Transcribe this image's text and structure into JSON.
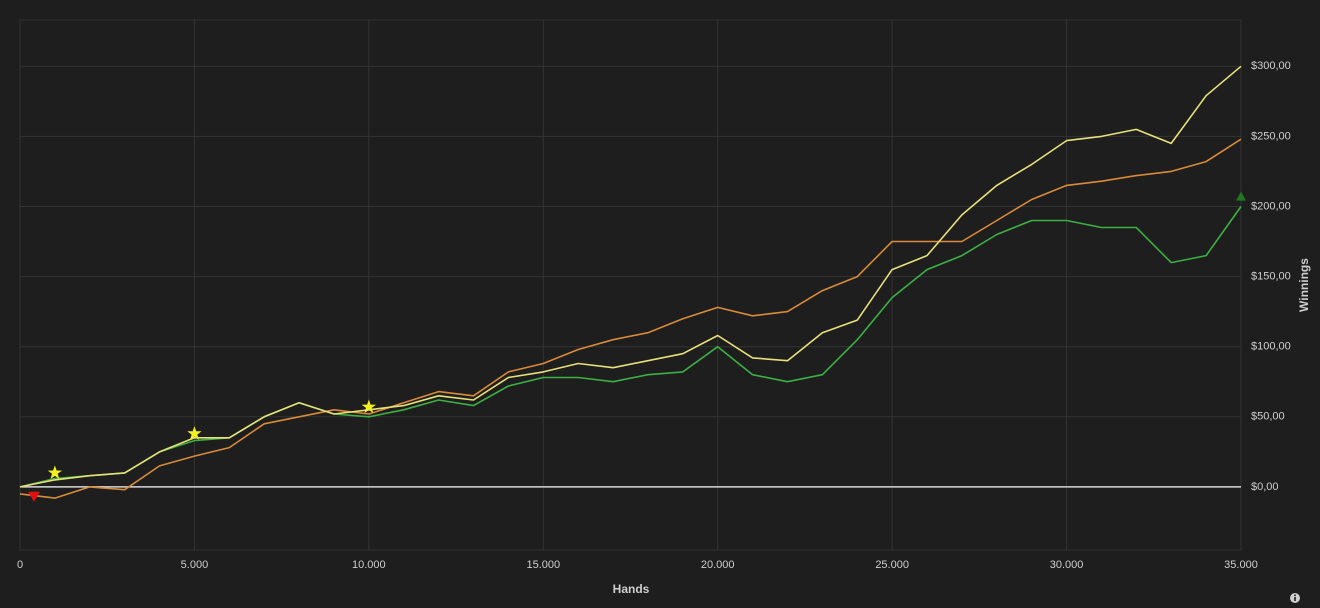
{
  "chart_data": {
    "type": "line",
    "x_label": "Hands",
    "y_label": "Winnings",
    "x": [
      0,
      1000,
      2000,
      3000,
      4000,
      5000,
      6000,
      7000,
      8000,
      9000,
      10000,
      11000,
      12000,
      13000,
      14000,
      15000,
      16000,
      17000,
      18000,
      19000,
      20000,
      21000,
      22000,
      23000,
      24000,
      25000,
      26000,
      27000,
      28000,
      29000,
      30000,
      31000,
      32000,
      33000,
      34000,
      35000
    ],
    "series": [
      {
        "color": "#3cb043",
        "values": [
          0,
          6,
          8,
          10,
          25,
          33,
          35,
          50,
          60,
          52,
          50,
          55,
          62,
          58,
          72,
          78,
          78,
          75,
          80,
          82,
          100,
          80,
          75,
          80,
          105,
          135,
          155,
          165,
          180,
          190,
          190,
          185,
          185,
          160,
          165,
          200
        ]
      },
      {
        "color": "#d98a3a",
        "values": [
          -5,
          -8,
          0,
          -2,
          15,
          22,
          28,
          45,
          50,
          55,
          52,
          60,
          68,
          65,
          82,
          88,
          98,
          105,
          110,
          120,
          128,
          122,
          125,
          140,
          150,
          175,
          175,
          175,
          190,
          205,
          215,
          218,
          222,
          225,
          232,
          248
        ]
      },
      {
        "color": "#e8e07a",
        "values": [
          0,
          5,
          8,
          10,
          25,
          35,
          35,
          50,
          60,
          52,
          55,
          58,
          65,
          62,
          78,
          82,
          88,
          85,
          90,
          95,
          108,
          92,
          90,
          110,
          119,
          155,
          165,
          194,
          215,
          230,
          247,
          250,
          255,
          245,
          279,
          300
        ]
      }
    ],
    "markers": [
      {
        "shape": "triangle-down",
        "color": "#e01010",
        "x": 400,
        "y": -7
      },
      {
        "shape": "star",
        "color": "#f5f020",
        "x": 1000,
        "y": 10
      },
      {
        "shape": "star",
        "color": "#f5f020",
        "x": 5000,
        "y": 38
      },
      {
        "shape": "star",
        "color": "#f5f020",
        "x": 10000,
        "y": 57
      },
      {
        "shape": "triangle-up",
        "color": "#1f7a1f",
        "x": 35000,
        "y": 207
      }
    ],
    "xlim": [
      0,
      35000
    ],
    "xticks": [
      0,
      {
        "value": 5000,
        "label": "5.000"
      },
      {
        "value": 10000,
        "label": "10.000"
      },
      {
        "value": 15000,
        "label": "15.000"
      },
      {
        "value": 20000,
        "label": "20.000"
      },
      {
        "value": 25000,
        "label": "25.000"
      },
      {
        "value": 30000,
        "label": "30.000"
      },
      {
        "value": 35000,
        "label": "35.000"
      }
    ],
    "ylim": [
      -45,
      333
    ],
    "yticks": [
      {
        "value": 0,
        "label": "$0,00"
      },
      {
        "value": 50,
        "label": "$50,00"
      },
      {
        "value": 100,
        "label": "$100,00"
      },
      {
        "value": 150,
        "label": "$150,00"
      },
      {
        "value": 200,
        "label": "$200,00"
      },
      {
        "value": 250,
        "label": "$250,00"
      },
      {
        "value": 300,
        "label": "$300,00"
      }
    ],
    "grid": true
  }
}
